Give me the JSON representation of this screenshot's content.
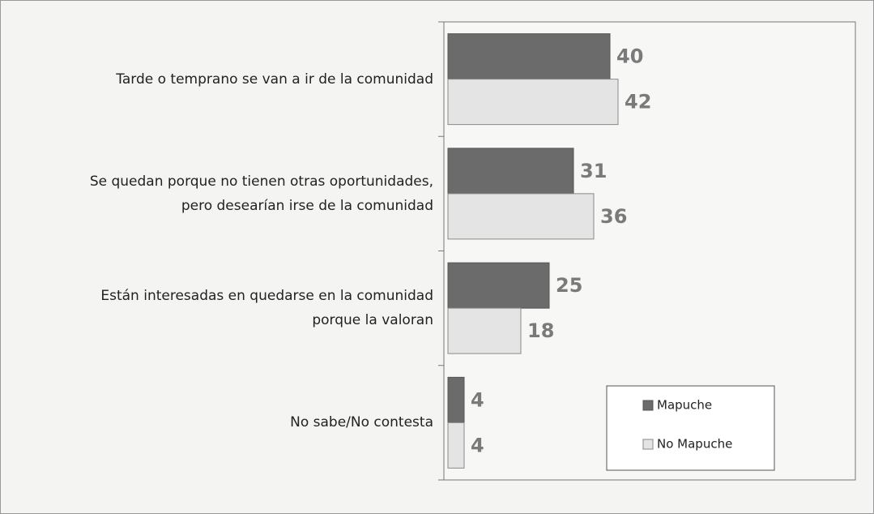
{
  "chart_data": {
    "type": "hbar",
    "categories": [
      "Tarde o temprano se van a ir de la comunidad",
      "Se quedan porque no tienen otras oportunidades,\npero desearían irse de la comunidad",
      "Están interesadas en quedarse en la comunidad\nporque la valoran",
      "No sabe/No contesta"
    ],
    "series": [
      {
        "name": "Mapuche",
        "color": "#6b6b6b",
        "values": [
          40,
          31,
          25,
          4
        ]
      },
      {
        "name": "No Mapuche",
        "color": "#e4e4e4",
        "values": [
          42,
          36,
          18,
          4
        ]
      }
    ],
    "xlim": [
      0,
      100
    ],
    "legend": "lower-right"
  }
}
